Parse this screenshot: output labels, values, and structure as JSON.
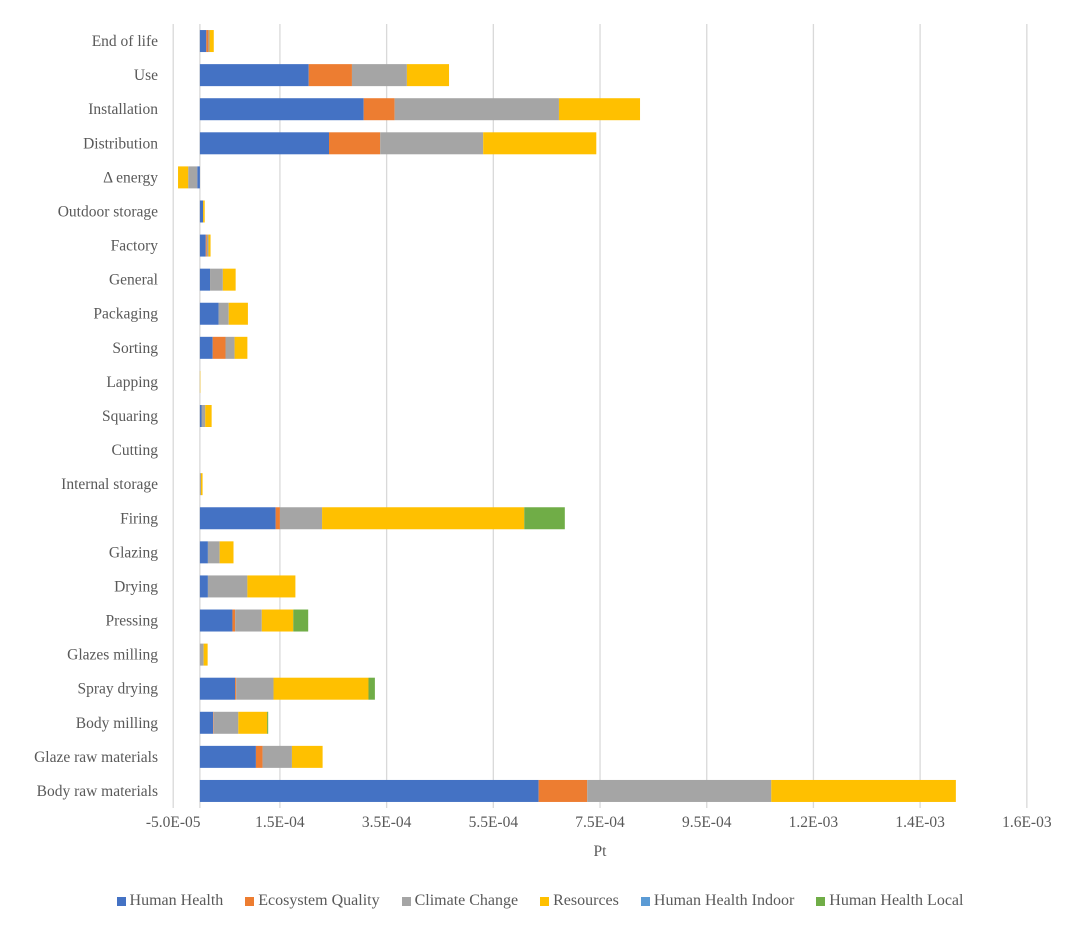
{
  "chart_data": {
    "type": "bar",
    "orientation": "horizontal",
    "stacked": true,
    "title": "",
    "xlabel": "Pt",
    "ylabel": "",
    "xlim": [
      -5e-05,
      0.0016
    ],
    "x_ticks": [
      -5e-05,
      0.00015,
      0.00035,
      0.00055,
      0.00075,
      0.00095,
      0.00115,
      0.00135,
      0.00155
    ],
    "x_tick_labels": [
      "-5.0E-05",
      "1.5E-04",
      "3.5E-04",
      "5.5E-04",
      "7.5E-04",
      "9.5E-04",
      "1.2E-03",
      "1.4E-03",
      "1.6E-03"
    ],
    "grid": "vertical",
    "legend_position": "bottom",
    "categories": [
      "End of life",
      "Use",
      "Installation",
      "Distribution",
      "Δ energy",
      "Outdoor storage",
      "Factory",
      "General",
      "Packaging",
      "Sorting",
      "Lapping",
      "Squaring",
      "Cutting",
      "Internal storage",
      "Firing",
      "Glazing",
      "Drying",
      "Pressing",
      "Glazes milling",
      "Spray drying",
      "Body milling",
      "Glaze raw materials",
      "Body raw materials"
    ],
    "series": [
      {
        "name": "Human Health",
        "color": "#4472C4",
        "values": [
          1.2e-05,
          0.000204,
          0.000307,
          0.000242,
          -5e-06,
          6e-06,
          1.1e-05,
          1.9e-05,
          3.5e-05,
          2.4e-05,
          0.0,
          3e-06,
          0.0,
          0.0,
          0.000142,
          1.5e-05,
          1.5e-05,
          6.1e-05,
          0.0,
          6.6e-05,
          2.5e-05,
          0.000105,
          0.000635
        ]
      },
      {
        "name": "Ecosystem Quality",
        "color": "#ED7D31",
        "values": [
          4e-06,
          8.1e-05,
          5.8e-05,
          9.6e-05,
          0.0,
          0.0,
          2e-06,
          0.0,
          0.0,
          2.4e-05,
          0.0,
          0.0,
          0.0,
          0.0,
          8e-06,
          0.0,
          0.0,
          5e-06,
          0.0,
          2e-06,
          1e-06,
          1.25e-05,
          9.1e-05
        ]
      },
      {
        "name": "Climate Change",
        "color": "#A5A5A5",
        "values": [
          2e-06,
          0.000103,
          0.000308,
          0.000193,
          -1.7e-05,
          0.0,
          3e-06,
          2.4e-05,
          1.9e-05,
          1.7e-05,
          0.0,
          7e-06,
          0.0,
          2e-06,
          7.9e-05,
          2.2e-05,
          7.4e-05,
          5e-05,
          7e-06,
          7e-05,
          4.6e-05,
          5.5e-05,
          0.000345
        ]
      },
      {
        "name": "Resources",
        "color": "#FFC000",
        "values": [
          8e-06,
          7.9e-05,
          0.000152,
          0.000212,
          -1.9e-05,
          3e-06,
          4e-06,
          2.4e-05,
          3.6e-05,
          2.4e-05,
          5e-07,
          1.2e-05,
          0.0,
          3e-06,
          0.000379,
          2.6e-05,
          9e-05,
          5.9e-05,
          7.5e-06,
          0.000178,
          5.4e-05,
          5.75e-05,
          0.000346
        ]
      },
      {
        "name": "Human Health Indoor",
        "color": "#5B9BD5",
        "values": [
          0,
          0,
          0,
          0,
          0,
          0,
          0,
          0,
          0,
          0,
          0,
          0,
          0,
          0,
          0,
          0,
          0,
          0,
          0,
          0,
          0,
          0,
          0
        ]
      },
      {
        "name": "Human Health Local",
        "color": "#70AD47",
        "values": [
          0,
          0,
          0,
          0,
          0,
          0,
          0,
          0,
          0,
          0,
          0,
          0,
          0,
          0,
          7.6e-05,
          0,
          0,
          2.8e-05,
          0,
          1.2e-05,
          2e-06,
          0,
          0
        ]
      }
    ]
  }
}
